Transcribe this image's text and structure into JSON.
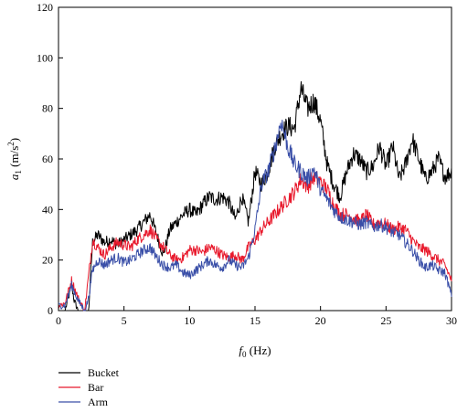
{
  "chart_data": {
    "type": "line",
    "title": "",
    "xlabel_var": "f",
    "xlabel_sub": "0",
    "xlabel_unit": " (Hz)",
    "ylabel_var": "a",
    "ylabel_sub": "1",
    "ylabel_unit_pre": " (m/s",
    "ylabel_unit_sup": "2",
    "ylabel_unit_post": ")",
    "xlim": [
      0,
      30
    ],
    "ylim": [
      0,
      120
    ],
    "xticks": [
      0,
      5,
      10,
      15,
      20,
      25,
      30
    ],
    "yticks": [
      0,
      20,
      40,
      60,
      80,
      100,
      120
    ],
    "grid": false,
    "legend_position": "bottom-left",
    "series": [
      {
        "name": "Bucket",
        "color": "#000000",
        "x": [
          0,
          0.5,
          1,
          1.2,
          1.5,
          1.8,
          2,
          2.3,
          2.6,
          3,
          3.5,
          4,
          4.5,
          5,
          5.5,
          6,
          6.5,
          7,
          7.5,
          8,
          8.5,
          9,
          9.5,
          10,
          10.5,
          11,
          11.5,
          12,
          12.5,
          13,
          13.5,
          14,
          14.5,
          15,
          15.5,
          16,
          16.5,
          17,
          17.5,
          18,
          18.5,
          19,
          19.5,
          20,
          20.5,
          21,
          21.5,
          22,
          22.5,
          23,
          23.5,
          24,
          24.5,
          25,
          25.5,
          26,
          26.5,
          27,
          27.5,
          28,
          28.5,
          29,
          29.5,
          30
        ],
        "y": [
          0,
          0,
          10,
          4,
          0,
          0,
          0,
          0,
          27,
          30,
          27,
          28,
          26,
          28,
          30,
          32,
          35,
          38,
          30,
          22,
          32,
          35,
          38,
          40,
          38,
          42,
          45,
          44,
          45,
          43,
          36,
          45,
          35,
          55,
          50,
          55,
          65,
          70,
          73,
          72,
          88,
          80,
          83,
          75,
          58,
          50,
          45,
          55,
          62,
          60,
          55,
          57,
          65,
          57,
          65,
          52,
          58,
          68,
          60,
          52,
          55,
          60,
          53,
          55
        ]
      },
      {
        "name": "Bar",
        "color": "#e8192c",
        "x": [
          0,
          0.5,
          1,
          1.5,
          2,
          2.3,
          2.6,
          3,
          3.5,
          4,
          4.5,
          5,
          5.5,
          6,
          6.5,
          7,
          7.5,
          8,
          8.5,
          9,
          9.5,
          10,
          10.5,
          11,
          11.5,
          12,
          12.5,
          13,
          13.5,
          14,
          14.5,
          15,
          15.5,
          16,
          16.5,
          17,
          17.5,
          18,
          18.5,
          19,
          19.5,
          20,
          20.5,
          21,
          21.5,
          22,
          22.5,
          23,
          23.5,
          24,
          24.5,
          25,
          25.5,
          26,
          26.5,
          27,
          27.5,
          28,
          28.5,
          29,
          29.5,
          30
        ],
        "y": [
          2,
          3,
          12,
          5,
          0,
          14,
          28,
          25,
          22,
          25,
          27,
          26,
          25,
          28,
          30,
          32,
          28,
          25,
          22,
          20,
          21,
          24,
          24,
          23,
          25,
          24,
          22,
          21,
          22,
          20,
          25,
          28,
          32,
          35,
          38,
          41,
          44,
          47,
          52,
          49,
          53,
          51,
          48,
          42,
          38,
          38,
          37,
          35,
          38,
          34,
          35,
          34,
          32,
          33,
          32,
          28,
          25,
          24,
          22,
          20,
          18,
          12
        ]
      },
      {
        "name": "Arm",
        "color": "#3a4fa8",
        "x": [
          0,
          0.5,
          1,
          1.5,
          2,
          2.3,
          2.6,
          3,
          3.5,
          4,
          4.5,
          5,
          5.5,
          6,
          6.5,
          7,
          7.5,
          8,
          8.5,
          9,
          9.5,
          10,
          10.5,
          11,
          11.5,
          12,
          12.5,
          13,
          13.5,
          14,
          14.5,
          15,
          15.5,
          16,
          16.5,
          17,
          17.5,
          18,
          18.5,
          19,
          19.5,
          20,
          20.5,
          21,
          21.5,
          22,
          22.5,
          23,
          23.5,
          24,
          24.5,
          25,
          25.5,
          26,
          26.5,
          27,
          27.5,
          28,
          28.5,
          29,
          29.5,
          30
        ],
        "y": [
          2,
          2,
          10,
          4,
          0,
          5,
          16,
          20,
          18,
          20,
          21,
          19,
          20,
          22,
          24,
          25,
          21,
          18,
          17,
          18,
          15,
          14,
          16,
          18,
          20,
          18,
          17,
          20,
          18,
          17,
          21,
          32,
          50,
          55,
          64,
          75,
          65,
          58,
          55,
          52,
          56,
          48,
          44,
          40,
          37,
          36,
          35,
          34,
          35,
          33,
          34,
          33,
          31,
          30,
          27,
          24,
          20,
          17,
          18,
          16,
          15,
          6
        ]
      }
    ]
  }
}
